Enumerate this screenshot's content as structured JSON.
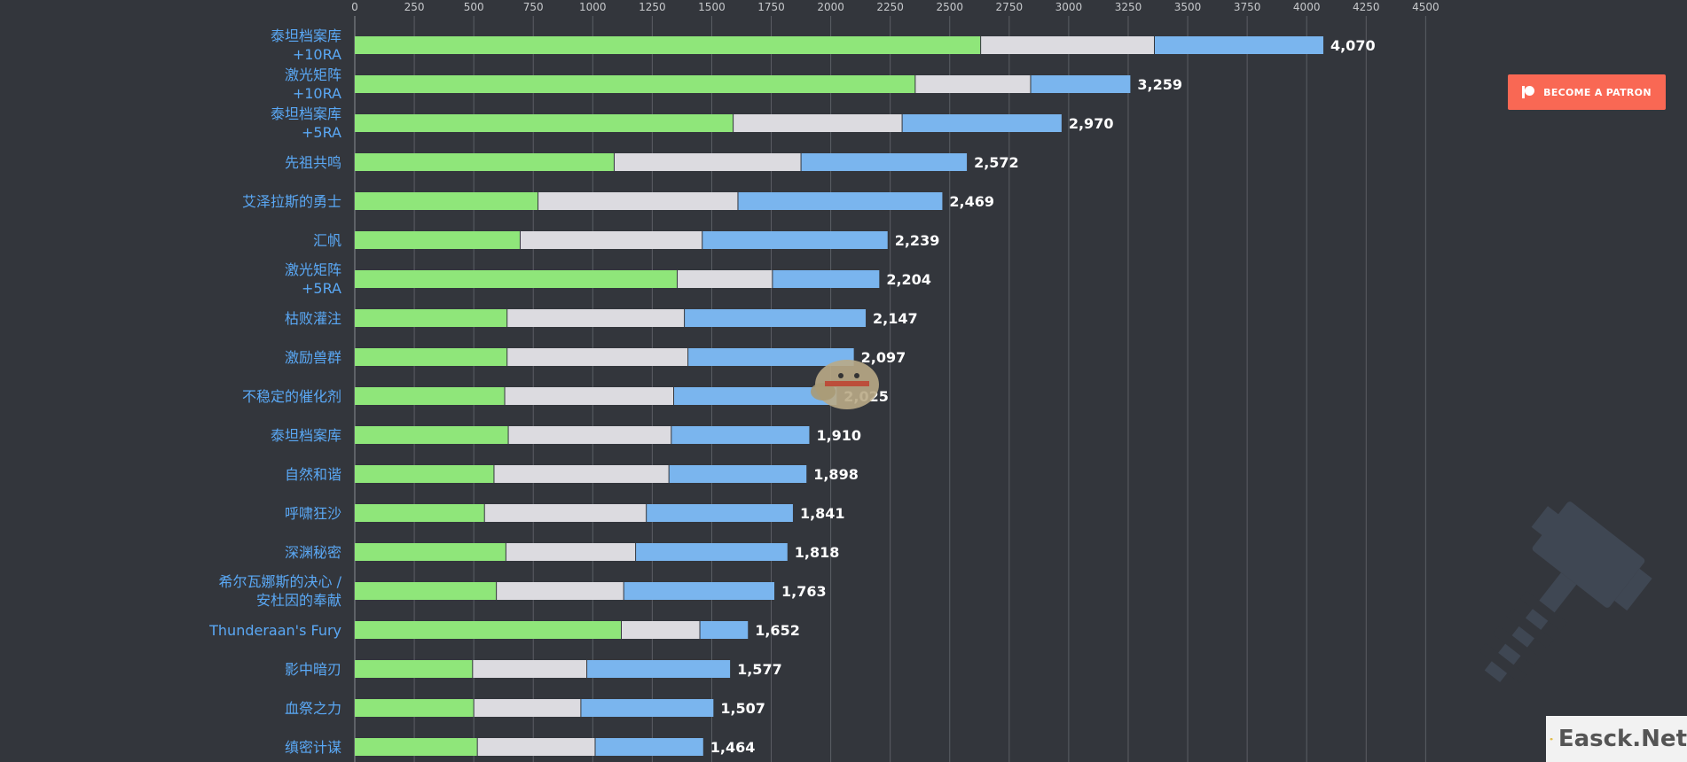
{
  "patron_button": {
    "label": "BECOME A PATRON"
  },
  "brand": {
    "text": "Easck.Net"
  },
  "chart_data": {
    "type": "bar",
    "orientation": "horizontal",
    "stacked": true,
    "xlim": [
      0,
      4500
    ],
    "x_ticks": [
      "0",
      "250",
      "500",
      "750",
      "1000",
      "1250",
      "1500",
      "1750",
      "2000",
      "2250",
      "2500",
      "2750",
      "3000",
      "3250",
      "3500",
      "3750",
      "4000",
      "4250",
      "4500"
    ],
    "grid": true,
    "colors": {
      "series_1": "#8fe67a",
      "series_2": "#dcdbe0",
      "series_3": "#7ab5ee",
      "category_label": "#5aa8f5"
    },
    "categories": [
      {
        "lines": [
          "泰坦档案库",
          "+10RA"
        ],
        "total": "4,070"
      },
      {
        "lines": [
          "激光矩阵",
          "+10RA"
        ],
        "total": "3,259"
      },
      {
        "lines": [
          "泰坦档案库",
          "+5RA"
        ],
        "total": "2,970"
      },
      {
        "lines": [
          "先祖共鸣"
        ],
        "total": "2,572"
      },
      {
        "lines": [
          "艾泽拉斯的勇士"
        ],
        "total": "2,469"
      },
      {
        "lines": [
          "汇帆"
        ],
        "total": "2,239"
      },
      {
        "lines": [
          "激光矩阵",
          "+5RA"
        ],
        "total": "2,204"
      },
      {
        "lines": [
          "枯败灌注"
        ],
        "total": "2,147"
      },
      {
        "lines": [
          "激励兽群"
        ],
        "total": "2,097"
      },
      {
        "lines": [
          "不稳定的催化剂"
        ],
        "total": "2,025"
      },
      {
        "lines": [
          "泰坦档案库"
        ],
        "total": "1,910"
      },
      {
        "lines": [
          "自然和谐"
        ],
        "total": "1,898"
      },
      {
        "lines": [
          "呼啸狂沙"
        ],
        "total": "1,841"
      },
      {
        "lines": [
          "深渊秘密"
        ],
        "total": "1,818"
      },
      {
        "lines": [
          "希尔瓦娜斯的决心 /",
          "安杜因的奉献"
        ],
        "total": "1,763"
      },
      {
        "lines": [
          "Thunderaan's Fury"
        ],
        "total": "1,652"
      },
      {
        "lines": [
          "影中暗刃"
        ],
        "total": "1,577"
      },
      {
        "lines": [
          "血祭之力"
        ],
        "total": "1,507"
      },
      {
        "lines": [
          "缜密计谋"
        ],
        "total": "1,464"
      }
    ],
    "series": [
      {
        "values": [
          2630,
          2355,
          1590,
          1090,
          770,
          695,
          1355,
          640,
          640,
          630,
          645,
          585,
          545,
          635,
          595,
          1120,
          495,
          500,
          515
        ]
      },
      {
        "values": [
          730,
          485,
          710,
          785,
          840,
          765,
          400,
          745,
          760,
          710,
          685,
          735,
          680,
          545,
          535,
          330,
          480,
          450,
          495
        ]
      },
      {
        "values": [
          710,
          419,
          670,
          697,
          859,
          779,
          449,
          762,
          697,
          685,
          580,
          578,
          616,
          638,
          633,
          202,
          602,
          557,
          454
        ]
      }
    ]
  }
}
